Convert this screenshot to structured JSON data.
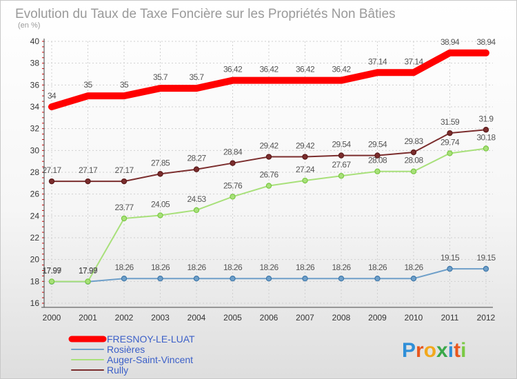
{
  "chart_data": {
    "type": "line",
    "title": "Evolution du Taux de Taxe Foncière sur les Propriétés Non Bâties",
    "subtitle": "(en %)",
    "xlabel": "",
    "ylabel": "",
    "x": [
      "2000",
      "2001",
      "2002",
      "2003",
      "2004",
      "2005",
      "2006",
      "2007",
      "2008",
      "2009",
      "2010",
      "2011",
      "2012"
    ],
    "ylim": [
      16,
      40
    ],
    "yticks": [
      16,
      18,
      20,
      22,
      24,
      26,
      28,
      30,
      32,
      34,
      36,
      38,
      40
    ],
    "grid": true,
    "legend_position": "bottom-left",
    "series": [
      {
        "name": "FRESNOY-LE-LUAT",
        "color": "#ff0000",
        "values": [
          34,
          35,
          35,
          35.7,
          35.7,
          36.42,
          36.42,
          36.42,
          36.42,
          37.14,
          37.14,
          38.94,
          38.94
        ],
        "labels": [
          "34",
          "35",
          "35",
          "35.7",
          "35.7",
          "36.42",
          "36.42",
          "36.42",
          "36.42",
          "37.14",
          "37.14",
          "38.94",
          "38.94"
        ]
      },
      {
        "name": "Rosières",
        "color": "#6e9fc9",
        "marker": "#3f78aa",
        "values": [
          17.97,
          17.97,
          18.26,
          18.26,
          18.26,
          18.26,
          18.26,
          18.26,
          18.26,
          18.26,
          18.26,
          19.15,
          19.15
        ],
        "labels": [
          "17.97",
          "17.97",
          "18.26",
          "18.26",
          "18.26",
          "18.26",
          "18.26",
          "18.26",
          "18.26",
          "18.26",
          "18.26",
          "19.15",
          "19.15"
        ]
      },
      {
        "name": "Auger-Saint-Vincent",
        "color": "#a8e07a",
        "marker": "#7ac943",
        "values": [
          17.99,
          17.99,
          23.77,
          24.05,
          24.53,
          25.76,
          26.76,
          27.24,
          27.67,
          28.08,
          28.08,
          29.74,
          30.18
        ],
        "labels": [
          "17.99",
          "17.99",
          "23.77",
          "24.05",
          "24.53",
          "25.76",
          "26.76",
          "27.24",
          "27.67",
          "28.08",
          "28.08",
          "29.74",
          "30.18"
        ]
      },
      {
        "name": "Rully",
        "color": "#7b2d2d",
        "marker": "#5a1a1a",
        "values": [
          27.17,
          27.17,
          27.17,
          27.85,
          28.27,
          28.84,
          29.42,
          29.42,
          29.54,
          29.54,
          29.83,
          31.59,
          31.9
        ],
        "labels": [
          "27.17",
          "27.17",
          "27.17",
          "27.85",
          "28.27",
          "28.84",
          "29.42",
          "29.42",
          "29.54",
          "29.54",
          "29.83",
          "31.59",
          "31.9"
        ]
      }
    ]
  },
  "logo": {
    "letters": [
      "P",
      "r",
      "o",
      "x",
      "i",
      "t",
      "i"
    ],
    "colors": [
      "#2f8fd8",
      "#e8571e",
      "#f2a81d",
      "#3aa84a",
      "#2f8fd8",
      "#e8571e",
      "#7ac943"
    ]
  }
}
